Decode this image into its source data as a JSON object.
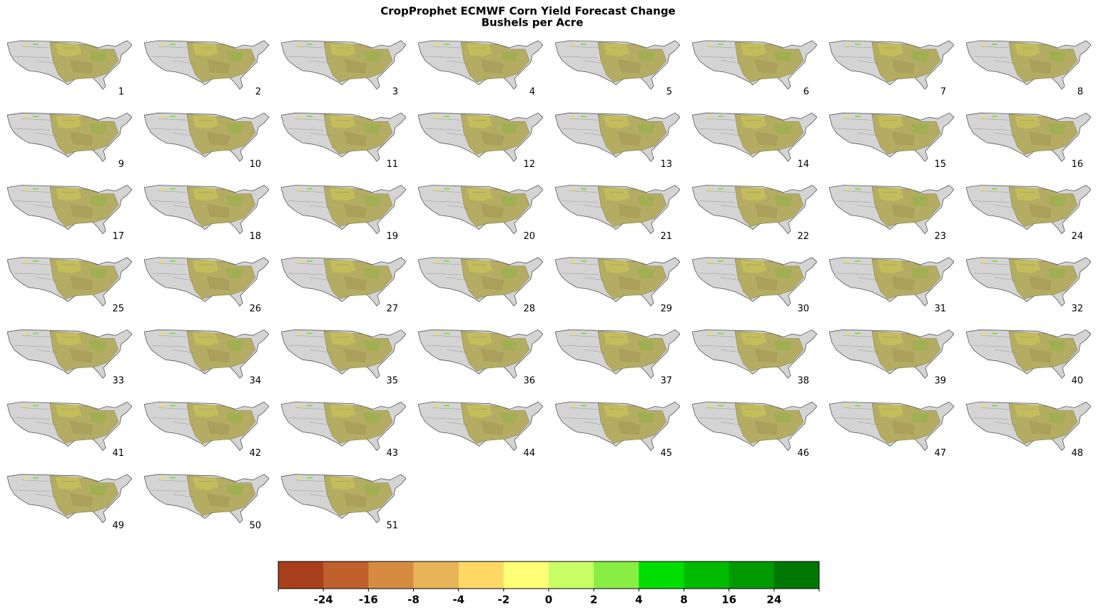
{
  "chart_data": {
    "type": "map-grid",
    "title": "CropProphet ECMWF Corn Yield Forecast Change",
    "subtitle": "Bushels per Acre",
    "panels": [
      1,
      2,
      3,
      4,
      5,
      6,
      7,
      8,
      9,
      10,
      11,
      12,
      13,
      14,
      15,
      16,
      17,
      18,
      19,
      20,
      21,
      22,
      23,
      24,
      25,
      26,
      27,
      28,
      29,
      30,
      31,
      32,
      33,
      34,
      35,
      36,
      37,
      38,
      39,
      40,
      41,
      42,
      43,
      44,
      45,
      46,
      47,
      48,
      49,
      50,
      51
    ],
    "colorbar": {
      "colors": [
        "#a8401e",
        "#c0602c",
        "#d68c40",
        "#e8b458",
        "#ffd866",
        "#ffff77",
        "#c8ff66",
        "#88ee44",
        "#00dd00",
        "#00bb00",
        "#009900",
        "#007700"
      ],
      "ticks": [
        -24,
        -16,
        -8,
        -4,
        -2,
        0,
        2,
        4,
        8,
        16,
        24
      ]
    }
  }
}
